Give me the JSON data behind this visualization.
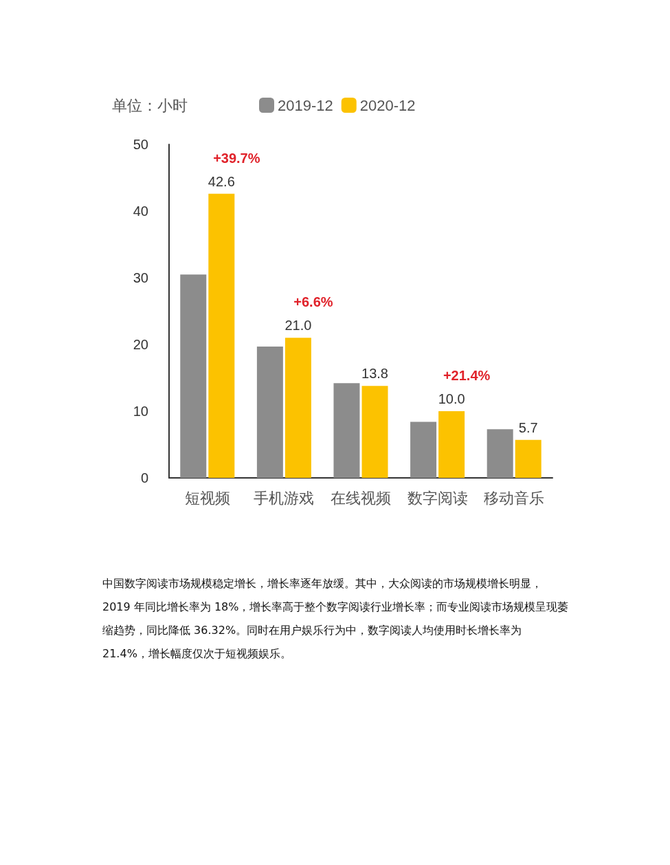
{
  "chart_data": {
    "type": "bar",
    "ylabel": "单位：小时",
    "categories": [
      "短视频",
      "手机游戏",
      "在线视频",
      "数字阅读",
      "移动音乐"
    ],
    "series": [
      {
        "name": "2019-12",
        "color": "#8c8c8c",
        "values": [
          30.5,
          19.7,
          14.2,
          8.4,
          7.3
        ]
      },
      {
        "name": "2020-12",
        "color": "#fcc200",
        "values": [
          42.6,
          21.0,
          13.8,
          10.0,
          5.7
        ],
        "value_labels": [
          "42.6",
          "21.0",
          "13.8",
          "10.0",
          "5.7"
        ]
      }
    ],
    "ylim": [
      0,
      50
    ],
    "yticks": [
      0,
      10,
      20,
      30,
      40,
      50
    ],
    "grid": false,
    "legend": "top",
    "annotations": [
      {
        "text": "+39.7%",
        "x": "短视频",
        "y": 42.6
      },
      {
        "text": "+6.6%",
        "x": "手机游戏",
        "y": 21.0
      },
      {
        "text": "+21.4%",
        "x": "数字阅读",
        "y": 10.0
      },
      "中国数字阅读市场规模稳定增长，增长率逐年放缓。其中，大众阅读的市场规模增长明显，2019 年同比增长率为 18%，增长率高于整个数字阅读行业增长率；而专业阅读市场规模呈现萎缩趋势，同比降低 36.32%。同时在用户娱乐行为中，数字阅读人均使用时长增长率为 21.4%，增长幅度仅次于短视频娱乐。"
    ]
  }
}
